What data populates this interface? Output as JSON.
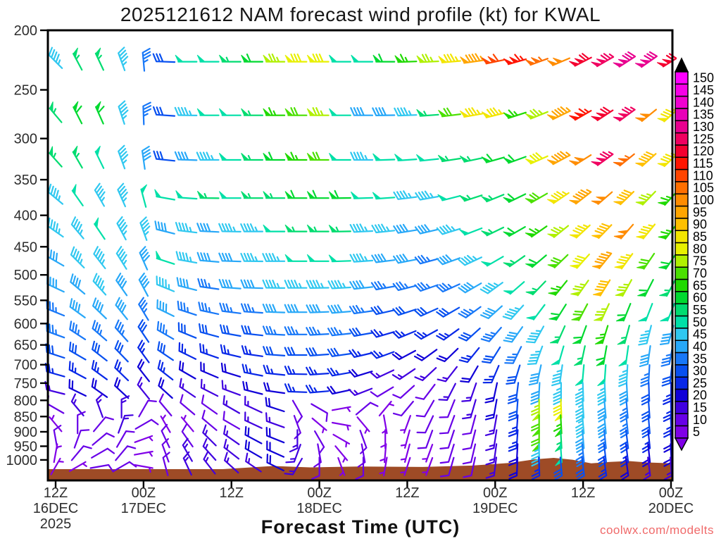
{
  "title": "2025121612 NAM forecast wind profile (kt) for KWAL",
  "xlabel": "Forecast Time (UTC)",
  "watermark": "coolwx.com/modelts",
  "chart_data": {
    "type": "wind-barb-profile",
    "title": "2025121612 NAM forecast wind profile (kt) for KWAL",
    "x_axis_label": "Forecast Time (UTC)",
    "y_scale": "log",
    "y_ticks": [
      200,
      250,
      300,
      350,
      400,
      450,
      500,
      550,
      600,
      650,
      700,
      750,
      800,
      850,
      900,
      950,
      1000
    ],
    "x_ticks": [
      {
        "z": "12Z",
        "date": "16DEC",
        "year": "2025"
      },
      {
        "z": "00Z",
        "date": "17DEC",
        "year": ""
      },
      {
        "z": "12Z",
        "date": "",
        "year": ""
      },
      {
        "z": "00Z",
        "date": "18DEC",
        "year": ""
      },
      {
        "z": "12Z",
        "date": "",
        "year": ""
      },
      {
        "z": "00Z",
        "date": "19DEC",
        "year": ""
      },
      {
        "z": "12Z",
        "date": "",
        "year": ""
      },
      {
        "z": "00Z",
        "date": "20DEC",
        "year": ""
      }
    ],
    "time_hours": [
      0,
      3,
      6,
      9,
      12,
      15,
      18,
      21,
      24,
      27,
      30,
      33,
      36,
      39,
      42,
      45,
      48,
      51,
      54,
      57,
      60,
      63,
      66,
      69,
      72,
      75,
      78,
      81,
      84
    ],
    "levels_hpa": [
      225,
      275,
      325,
      375,
      425,
      475,
      525,
      575,
      625,
      675,
      725,
      775,
      825,
      875,
      925,
      975,
      1025
    ],
    "speed_kt": [
      [
        45,
        55,
        55,
        45,
        35,
        30,
        50,
        50,
        55,
        60,
        75,
        80,
        80,
        50,
        50,
        60,
        65,
        75,
        85,
        95,
        110,
        115,
        105,
        100,
        120,
        125,
        130,
        130,
        120
      ],
      [
        55,
        60,
        60,
        45,
        35,
        30,
        45,
        50,
        50,
        55,
        65,
        70,
        75,
        50,
        40,
        40,
        45,
        55,
        70,
        85,
        85,
        65,
        75,
        95,
        115,
        120,
        125,
        100,
        85
      ],
      [
        55,
        55,
        50,
        45,
        40,
        30,
        40,
        45,
        50,
        55,
        60,
        65,
        70,
        50,
        45,
        50,
        50,
        50,
        55,
        55,
        60,
        60,
        80,
        95,
        100,
        125,
        105,
        90,
        85
      ],
      [
        45,
        50,
        45,
        45,
        50,
        50,
        50,
        55,
        50,
        55,
        55,
        60,
        60,
        60,
        50,
        50,
        45,
        45,
        50,
        55,
        55,
        60,
        70,
        85,
        95,
        100,
        90,
        75,
        65
      ],
      [
        45,
        45,
        50,
        45,
        45,
        40,
        45,
        40,
        45,
        45,
        50,
        55,
        55,
        55,
        45,
        45,
        40,
        40,
        45,
        50,
        55,
        60,
        65,
        75,
        85,
        90,
        100,
        85,
        65
      ],
      [
        40,
        45,
        45,
        45,
        40,
        50,
        45,
        40,
        40,
        45,
        45,
        50,
        50,
        50,
        45,
        40,
        40,
        35,
        40,
        45,
        50,
        55,
        60,
        70,
        80,
        95,
        85,
        70,
        60
      ],
      [
        40,
        40,
        45,
        40,
        40,
        45,
        40,
        35,
        40,
        40,
        45,
        45,
        45,
        45,
        40,
        35,
        35,
        35,
        35,
        40,
        45,
        50,
        55,
        65,
        75,
        90,
        75,
        60,
        55
      ],
      [
        35,
        40,
        40,
        40,
        35,
        40,
        35,
        35,
        35,
        35,
        40,
        40,
        40,
        40,
        35,
        30,
        30,
        30,
        30,
        35,
        40,
        45,
        50,
        60,
        70,
        75,
        60,
        50,
        50
      ],
      [
        35,
        35,
        35,
        35,
        30,
        35,
        30,
        30,
        30,
        30,
        35,
        35,
        35,
        35,
        30,
        25,
        25,
        25,
        25,
        30,
        35,
        40,
        45,
        55,
        60,
        65,
        55,
        45,
        40
      ],
      [
        30,
        30,
        30,
        30,
        25,
        30,
        25,
        25,
        25,
        25,
        30,
        30,
        30,
        30,
        25,
        25,
        20,
        20,
        20,
        25,
        30,
        35,
        45,
        50,
        55,
        60,
        50,
        40,
        35
      ],
      [
        25,
        25,
        25,
        25,
        20,
        25,
        20,
        20,
        20,
        25,
        25,
        25,
        25,
        25,
        20,
        15,
        15,
        15,
        15,
        20,
        25,
        30,
        40,
        45,
        50,
        50,
        45,
        35,
        30
      ],
      [
        15,
        20,
        20,
        20,
        15,
        20,
        15,
        15,
        15,
        20,
        20,
        25,
        25,
        20,
        15,
        10,
        10,
        10,
        15,
        15,
        20,
        30,
        40,
        45,
        45,
        45,
        40,
        30,
        25
      ],
      [
        10,
        15,
        15,
        15,
        10,
        10,
        10,
        10,
        15,
        15,
        20,
        10,
        10,
        5,
        10,
        5,
        10,
        10,
        10,
        15,
        20,
        30,
        75,
        80,
        45,
        40,
        35,
        30,
        25
      ],
      [
        5,
        10,
        10,
        15,
        10,
        5,
        5,
        10,
        10,
        15,
        15,
        10,
        5,
        5,
        5,
        5,
        5,
        10,
        10,
        10,
        15,
        25,
        70,
        65,
        45,
        40,
        35,
        30,
        25
      ],
      [
        10,
        10,
        10,
        10,
        5,
        10,
        10,
        15,
        15,
        20,
        20,
        15,
        10,
        5,
        10,
        5,
        5,
        10,
        10,
        10,
        15,
        25,
        70,
        55,
        40,
        35,
        30,
        25,
        20
      ],
      [
        5,
        10,
        10,
        10,
        5,
        10,
        15,
        15,
        15,
        20,
        20,
        15,
        10,
        5,
        10,
        5,
        5,
        5,
        10,
        10,
        15,
        20,
        45,
        50,
        35,
        30,
        25,
        20,
        20
      ],
      [
        5,
        5,
        10,
        10,
        5,
        10,
        15,
        15,
        15,
        15,
        20,
        15,
        10,
        5,
        10,
        5,
        5,
        5,
        10,
        10,
        15,
        20,
        25,
        30,
        30,
        25,
        20,
        15,
        15
      ]
    ],
    "dir_from_deg": [
      [
        315,
        332,
        335,
        340,
        355,
        272,
        270,
        270,
        270,
        270,
        270,
        270,
        270,
        270,
        270,
        270,
        268,
        267,
        265,
        262,
        258,
        254,
        250,
        247,
        243,
        240,
        237,
        235,
        238
      ],
      [
        320,
        333,
        336,
        342,
        358,
        274,
        271,
        270,
        270,
        270,
        270,
        270,
        270,
        270,
        270,
        269,
        268,
        266,
        263,
        260,
        256,
        252,
        248,
        244,
        240,
        237,
        234,
        231,
        228
      ],
      [
        318,
        330,
        334,
        340,
        352,
        276,
        272,
        270,
        270,
        270,
        270,
        270,
        270,
        270,
        270,
        268,
        266,
        264,
        261,
        258,
        254,
        250,
        246,
        242,
        238,
        234,
        231,
        228,
        226
      ],
      [
        310,
        325,
        330,
        336,
        345,
        280,
        274,
        271,
        270,
        270,
        270,
        270,
        270,
        269,
        268,
        266,
        263,
        260,
        256,
        252,
        248,
        244,
        240,
        236,
        232,
        229,
        226,
        224,
        222
      ],
      [
        305,
        320,
        326,
        332,
        340,
        284,
        277,
        273,
        271,
        270,
        270,
        270,
        270,
        269,
        267,
        264,
        261,
        257,
        253,
        249,
        244,
        240,
        235,
        231,
        227,
        224,
        221,
        219,
        218
      ],
      [
        300,
        315,
        322,
        328,
        336,
        288,
        280,
        275,
        272,
        271,
        270,
        270,
        270,
        268,
        266,
        263,
        259,
        255,
        250,
        245,
        240,
        235,
        230,
        226,
        222,
        219,
        216,
        214,
        214
      ],
      [
        295,
        310,
        318,
        325,
        332,
        292,
        284,
        278,
        274,
        272,
        271,
        270,
        269,
        267,
        264,
        260,
        256,
        251,
        246,
        240,
        234,
        229,
        224,
        219,
        215,
        212,
        209,
        207,
        208
      ],
      [
        292,
        306,
        314,
        321,
        329,
        296,
        288,
        282,
        277,
        274,
        272,
        270,
        268,
        265,
        262,
        257,
        252,
        246,
        240,
        234,
        228,
        222,
        217,
        212,
        208,
        205,
        202,
        201,
        202
      ],
      [
        290,
        303,
        311,
        318,
        326,
        300,
        292,
        285,
        280,
        276,
        273,
        270,
        267,
        264,
        260,
        254,
        248,
        241,
        234,
        228,
        221,
        215,
        209,
        204,
        200,
        197,
        195,
        194,
        196
      ],
      [
        288,
        300,
        308,
        316,
        324,
        304,
        296,
        289,
        283,
        278,
        274,
        270,
        266,
        262,
        257,
        250,
        242,
        234,
        226,
        219,
        212,
        206,
        200,
        196,
        192,
        190,
        188,
        188,
        190
      ],
      [
        286,
        298,
        306,
        314,
        322,
        308,
        300,
        293,
        287,
        281,
        276,
        271,
        266,
        260,
        253,
        245,
        236,
        227,
        218,
        210,
        203,
        197,
        192,
        188,
        185,
        184,
        183,
        183,
        186
      ],
      [
        284,
        296,
        305,
        313,
        321,
        312,
        304,
        297,
        290,
        284,
        278,
        272,
        265,
        258,
        249,
        239,
        228,
        217,
        207,
        199,
        192,
        187,
        183,
        180,
        178,
        177,
        177,
        178,
        181
      ],
      [
        300,
        320,
        340,
        0,
        30,
        320,
        310,
        305,
        300,
        295,
        288,
        150,
        120,
        80,
        50,
        40,
        220,
        210,
        202,
        196,
        190,
        184,
        180,
        178,
        176,
        175,
        175,
        176,
        179
      ],
      [
        320,
        0,
        40,
        20,
        60,
        330,
        320,
        310,
        300,
        295,
        290,
        160,
        130,
        100,
        140,
        170,
        200,
        205,
        200,
        195,
        190,
        184,
        180,
        177,
        175,
        174,
        174,
        175,
        178
      ],
      [
        350,
        20,
        50,
        30,
        70,
        335,
        325,
        315,
        305,
        298,
        292,
        180,
        150,
        120,
        160,
        180,
        195,
        200,
        198,
        194,
        189,
        184,
        180,
        177,
        175,
        174,
        173,
        174,
        177
      ],
      [
        10,
        40,
        60,
        40,
        80,
        340,
        330,
        318,
        308,
        300,
        294,
        200,
        170,
        140,
        170,
        185,
        195,
        200,
        197,
        193,
        188,
        183,
        179,
        176,
        174,
        173,
        173,
        174,
        177
      ],
      [
        30,
        60,
        80,
        60,
        100,
        345,
        335,
        322,
        312,
        304,
        296,
        210,
        180,
        160,
        180,
        190,
        198,
        200,
        196,
        192,
        187,
        182,
        178,
        175,
        173,
        172,
        172,
        173,
        176
      ]
    ],
    "colorbar": {
      "unit": "kt",
      "values": [
        5,
        10,
        15,
        20,
        25,
        30,
        35,
        40,
        45,
        50,
        55,
        60,
        65,
        70,
        75,
        80,
        85,
        90,
        95,
        100,
        105,
        110,
        115,
        120,
        125,
        130,
        135,
        140,
        145,
        150
      ],
      "colors": [
        "#8000E8",
        "#6800E8",
        "#4000E0",
        "#1000D8",
        "#0828E8",
        "#0850F0",
        "#1878F8",
        "#28A8F8",
        "#30C8F0",
        "#00E0A8",
        "#00DC70",
        "#00D930",
        "#20D900",
        "#4BE000",
        "#B0F000",
        "#E8F000",
        "#F2E500",
        "#FFC000",
        "#FFA500",
        "#FF8C00",
        "#FF6F00",
        "#FF4500",
        "#FF1500",
        "#F40030",
        "#F00060",
        "#E8008F",
        "#E800B8",
        "#F000D0",
        "#F700E7",
        "#FF00FF"
      ],
      "top_arrow_color": "#000000",
      "bottom_arrow_color": "#8000E8"
    },
    "terrain_color": "#9E4B26",
    "terrain_top": [
      [
        0,
        0.975
      ],
      [
        0.28,
        0.975
      ],
      [
        0.36,
        0.968
      ],
      [
        0.42,
        0.971
      ],
      [
        0.5,
        0.969
      ],
      [
        0.6,
        0.97
      ],
      [
        0.68,
        0.967
      ],
      [
        0.74,
        0.961
      ],
      [
        0.78,
        0.953
      ],
      [
        0.81,
        0.95
      ],
      [
        0.84,
        0.954
      ],
      [
        0.87,
        0.962
      ],
      [
        0.9,
        0.959
      ],
      [
        0.93,
        0.957
      ],
      [
        0.96,
        0.96
      ],
      [
        1,
        0.962
      ]
    ]
  }
}
